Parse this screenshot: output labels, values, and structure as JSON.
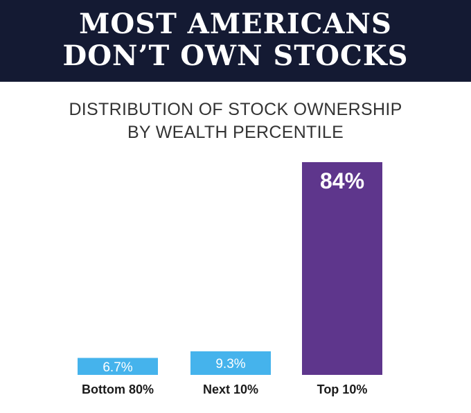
{
  "header": {
    "title_line1": "MOST AMERICANS",
    "title_line2": "DON’T OWN STOCKS"
  },
  "subtitle": {
    "line1": "DISTRIBUTION OF STOCK OWNERSHIP",
    "line2": "BY WEALTH PERCENTILE"
  },
  "colors": {
    "header_bg": "#141a33",
    "bar_light": "#45b3ec",
    "bar_dark": "#5e368c"
  },
  "chart_data": {
    "type": "bar",
    "title": "DISTRIBUTION OF STOCK OWNERSHIP BY WEALTH PERCENTILE",
    "xlabel": "",
    "ylabel": "",
    "categories": [
      "Bottom 80%",
      "Next 10%",
      "Top 10%"
    ],
    "values": [
      6.7,
      9.3,
      84
    ],
    "data_labels": [
      "6.7%",
      "9.3%",
      "84%"
    ],
    "bar_colors": [
      "#45b3ec",
      "#45b3ec",
      "#5e368c"
    ],
    "ylim": [
      0,
      84
    ],
    "grid": false,
    "legend": "none"
  }
}
